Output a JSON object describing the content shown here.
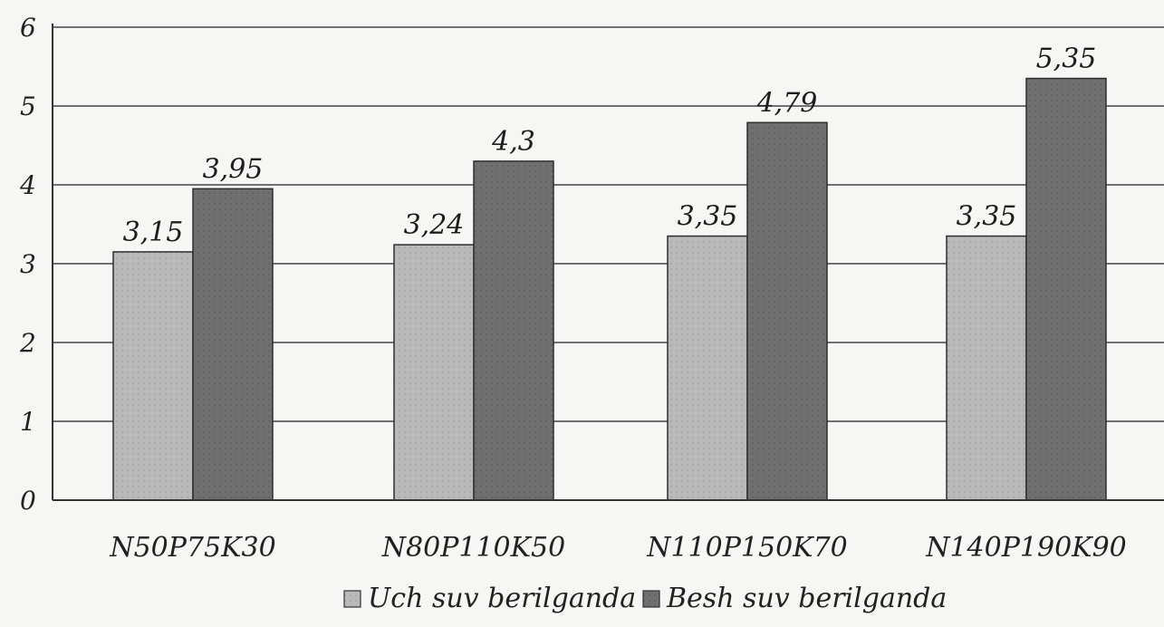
{
  "chart_data": {
    "type": "bar",
    "categories": [
      "N50P75K30",
      "N80P110K50",
      "N110P150K70",
      "N140P190K90"
    ],
    "series": [
      {
        "name": "Uch suv berilganda",
        "values": [
          3.15,
          3.24,
          3.35,
          3.35
        ],
        "labels": [
          "3,15",
          "3,24",
          "3,35",
          "3,35"
        ],
        "color": "#b9b9b9"
      },
      {
        "name": "Besh suv berilganda",
        "values": [
          3.95,
          4.3,
          4.79,
          5.35
        ],
        "labels": [
          "3,95",
          "4,3",
          "4,79",
          "5,35"
        ],
        "color": "#6f6f6f"
      }
    ],
    "yticks": [
      "0",
      "1",
      "2",
      "3",
      "4",
      "5",
      "6"
    ],
    "ylim": [
      0,
      6
    ],
    "grid": true,
    "legend": "bottom",
    "title": "",
    "xlabel": "",
    "ylabel": ""
  }
}
